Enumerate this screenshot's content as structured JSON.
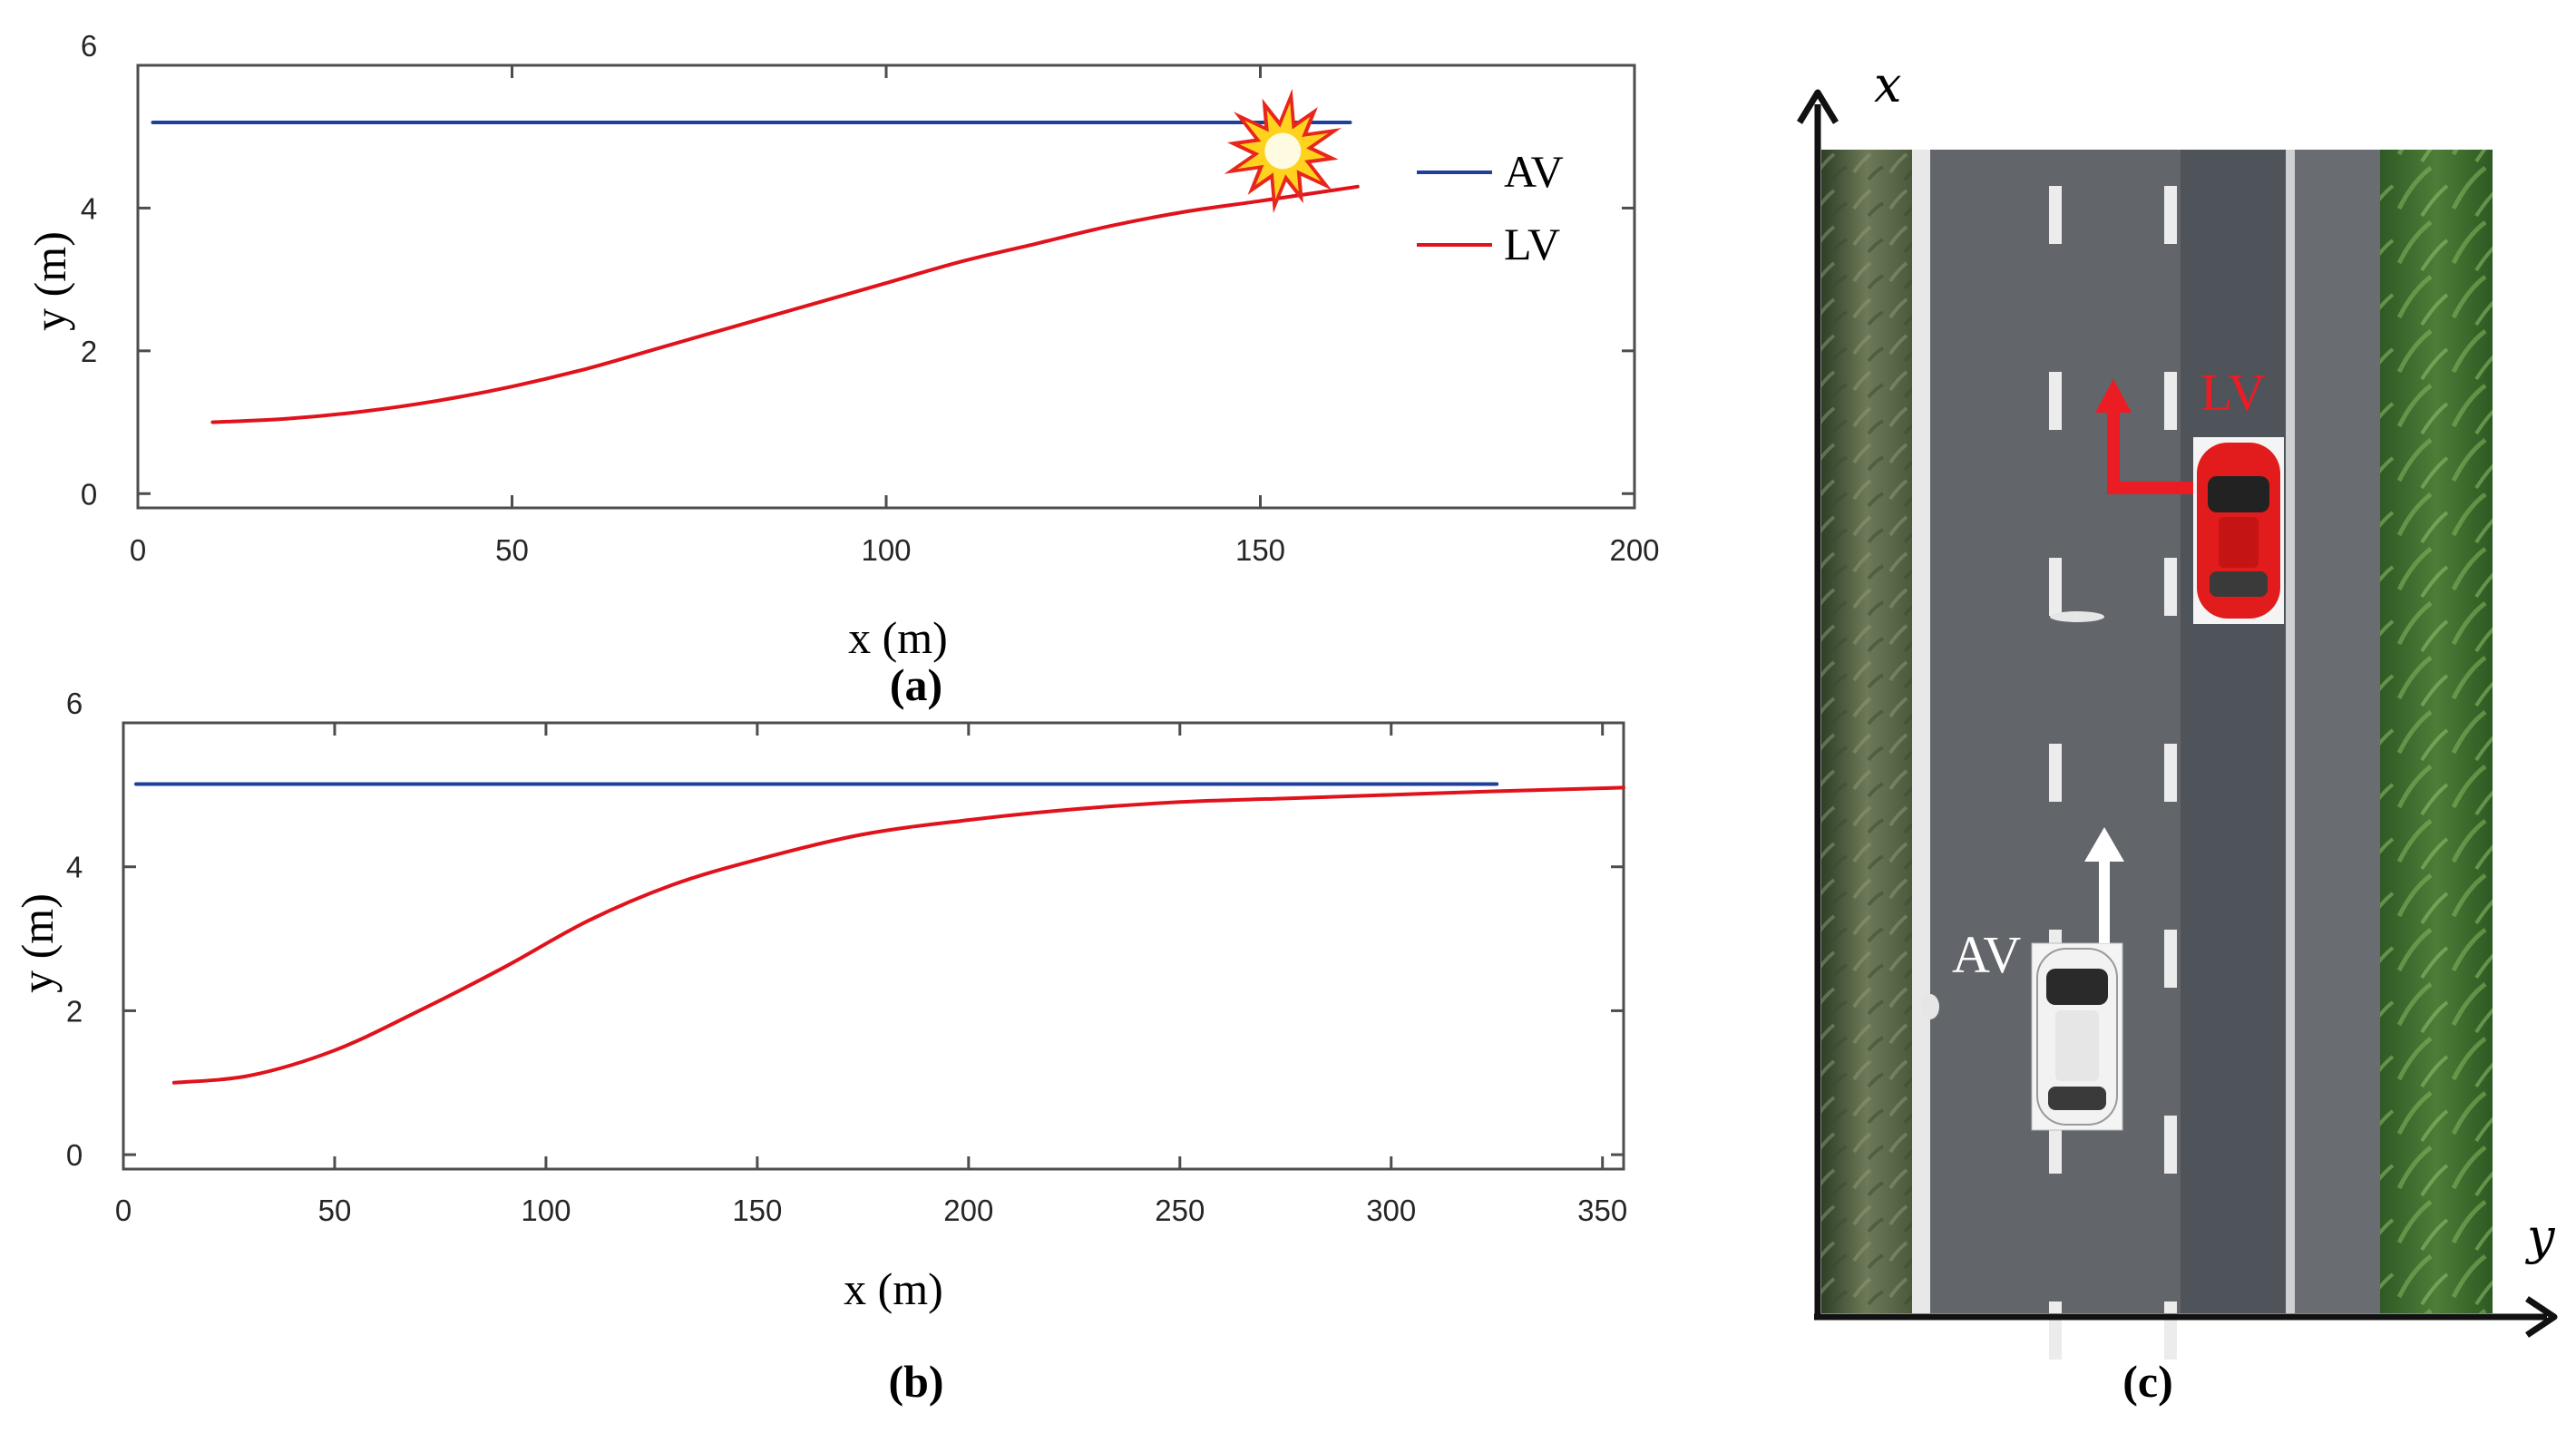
{
  "chart_data": [
    {
      "type": "line",
      "caption": "(a)",
      "xlabel": "x (m)",
      "ylabel": "y (m)",
      "xlim": [
        0,
        200
      ],
      "ylim": [
        -0.2,
        6
      ],
      "xticks": [
        0,
        50,
        100,
        150,
        200
      ],
      "yticks": [
        0,
        2,
        4,
        6
      ],
      "legend": {
        "position": "top-right",
        "entries": [
          "AV",
          "LV"
        ]
      },
      "collision_marker": {
        "x": 153,
        "y": 4.8,
        "icon": "collision-burst-icon"
      },
      "series": [
        {
          "name": "AV",
          "color": "#1f3f9a",
          "x": [
            2,
            162
          ],
          "y": [
            5.2,
            5.2
          ]
        },
        {
          "name": "LV",
          "color": "#e0121b",
          "x": [
            10,
            20,
            30,
            40,
            50,
            60,
            70,
            80,
            90,
            100,
            110,
            120,
            130,
            140,
            150,
            163
          ],
          "y": [
            1.0,
            1.05,
            1.15,
            1.3,
            1.5,
            1.75,
            2.05,
            2.35,
            2.65,
            2.95,
            3.25,
            3.5,
            3.75,
            3.95,
            4.1,
            4.3
          ]
        }
      ]
    },
    {
      "type": "line",
      "caption": "(b)",
      "xlabel": "x (m)",
      "ylabel": "y (m)",
      "xlim": [
        0,
        355
      ],
      "ylim": [
        -0.2,
        6
      ],
      "xticks": [
        0,
        50,
        100,
        150,
        200,
        250,
        300,
        350
      ],
      "yticks": [
        0,
        2,
        4,
        6
      ],
      "series": [
        {
          "name": "AV",
          "color": "#1f3f9a",
          "x": [
            3,
            325
          ],
          "y": [
            5.15,
            5.15
          ]
        },
        {
          "name": "LV",
          "color": "#e0121b",
          "x": [
            12,
            30,
            50,
            70,
            90,
            110,
            130,
            150,
            175,
            200,
            225,
            250,
            275,
            300,
            325,
            355
          ],
          "y": [
            1.0,
            1.1,
            1.45,
            2.0,
            2.6,
            3.25,
            3.75,
            4.1,
            4.45,
            4.65,
            4.8,
            4.9,
            4.95,
            5.0,
            5.05,
            5.1
          ]
        }
      ]
    }
  ],
  "scene": {
    "caption": "(c)",
    "x_axis_label": "x",
    "y_axis_label": "y",
    "av_label": "AV",
    "lv_label": "LV",
    "colors": {
      "road": "#5b5e63",
      "fast_lane": "#4f535a",
      "grass": "#4b6a3a",
      "lv_car": "#e21c1c",
      "av_car": "#f2f2f2",
      "lane_change_arrow": "#ec1c24"
    }
  }
}
